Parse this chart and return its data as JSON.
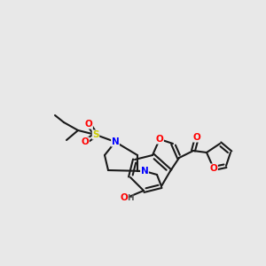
{
  "bg_color": "#e8e8e8",
  "bond_color": "#1a1a1a",
  "line_width": 1.5,
  "atom_colors": {
    "O": "#ff0000",
    "N": "#0000ff",
    "S": "#cccc00",
    "C": "#1a1a1a",
    "H": "#555555"
  },
  "font_size": 7.5,
  "fig_size": [
    3.0,
    3.0
  ],
  "dpi": 100
}
